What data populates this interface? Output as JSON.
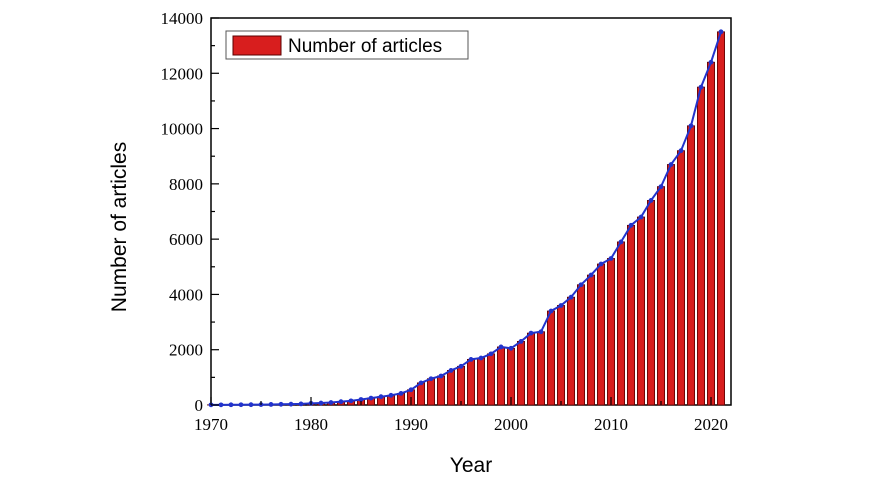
{
  "chart_data": {
    "type": "bar",
    "title": "",
    "xlabel": "Year",
    "ylabel": "Number of articles",
    "xlim": [
      1970,
      2022
    ],
    "ylim": [
      0,
      14000
    ],
    "x_ticks": [
      1970,
      1980,
      1990,
      2000,
      2010,
      2020
    ],
    "y_ticks": [
      0,
      2000,
      4000,
      6000,
      8000,
      10000,
      12000,
      14000
    ],
    "legend": {
      "position": "top-left",
      "entries": [
        "Number of articles"
      ]
    },
    "grid": false,
    "colors": {
      "bar_fill": "#d81e1e",
      "bar_edge": "#5a0000",
      "line": "#2233cc",
      "marker": "#2233cc"
    },
    "x": [
      1970,
      1971,
      1972,
      1973,
      1974,
      1975,
      1976,
      1977,
      1978,
      1979,
      1980,
      1981,
      1982,
      1983,
      1984,
      1985,
      1986,
      1987,
      1988,
      1989,
      1990,
      1991,
      1992,
      1993,
      1994,
      1995,
      1996,
      1997,
      1998,
      1999,
      2000,
      2001,
      2002,
      2003,
      2004,
      2005,
      2006,
      2007,
      2008,
      2009,
      2010,
      2011,
      2012,
      2013,
      2014,
      2015,
      2016,
      2017,
      2018,
      2019,
      2020,
      2021
    ],
    "series": [
      {
        "name": "Number of articles",
        "values": [
          5,
          5,
          8,
          10,
          12,
          15,
          20,
          25,
          30,
          40,
          60,
          70,
          90,
          120,
          150,
          200,
          250,
          300,
          350,
          420,
          550,
          800,
          950,
          1050,
          1250,
          1400,
          1650,
          1700,
          1850,
          2100,
          2050,
          2300,
          2600,
          2650,
          3400,
          3600,
          3900,
          4350,
          4700,
          5100,
          5300,
          5900,
          6500,
          6800,
          7400,
          7900,
          8700,
          9200,
          10100,
          11500,
          12400,
          13500
        ]
      }
    ]
  }
}
